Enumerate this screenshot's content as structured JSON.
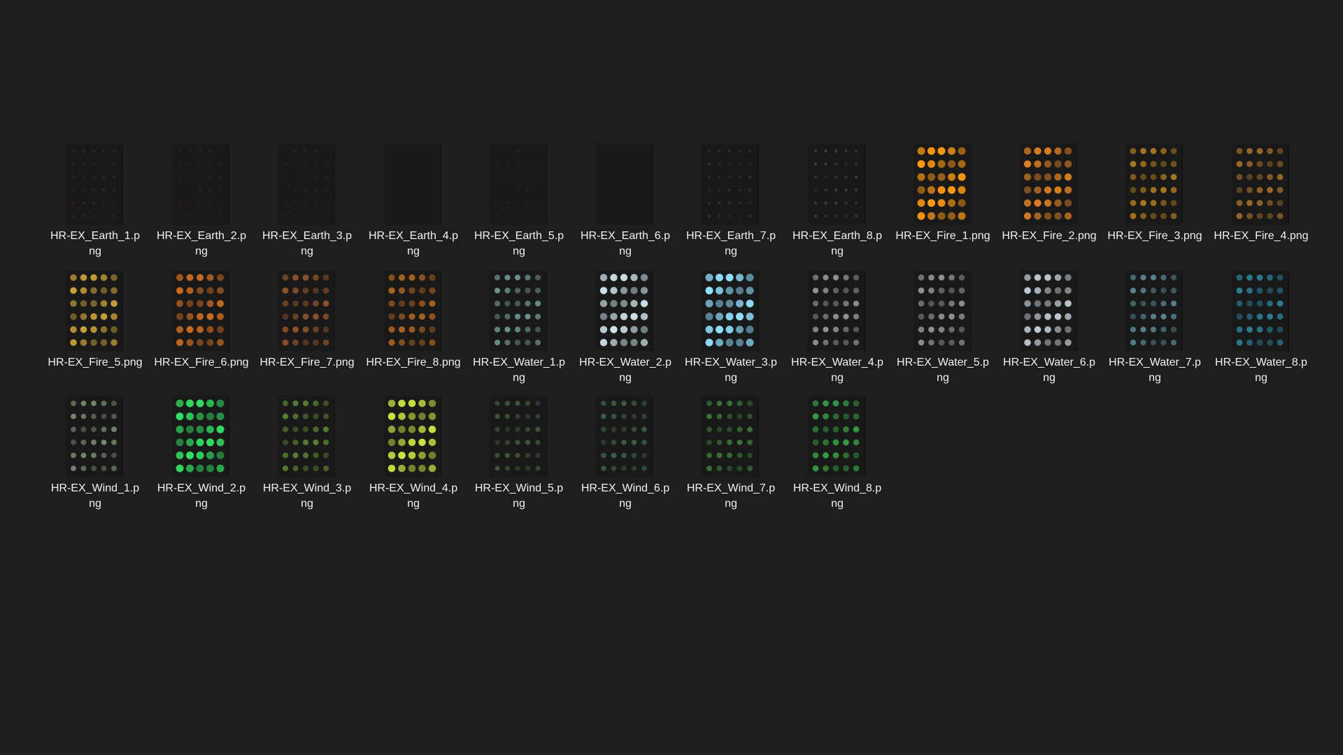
{
  "files": [
    {
      "name": "HR-EX_Earth_1.png",
      "label": "HR-EX_Earth_1.p\nng",
      "kind": "earth",
      "color": "#6b3a1c",
      "intensity": 0.35
    },
    {
      "name": "HR-EX_Earth_2.png",
      "label": "HR-EX_Earth_2.p\nng",
      "kind": "earth",
      "color": "#5a3018",
      "intensity": 0.3
    },
    {
      "name": "HR-EX_Earth_3.png",
      "label": "HR-EX_Earth_3.p\nng",
      "kind": "earth",
      "color": "#5a3018",
      "intensity": 0.3
    },
    {
      "name": "HR-EX_Earth_4.png",
      "label": "HR-EX_Earth_4.p\nng",
      "kind": "earth",
      "color": "#2a2a2a",
      "intensity": 0.0
    },
    {
      "name": "HR-EX_Earth_5.png",
      "label": "HR-EX_Earth_5.p\nng",
      "kind": "earth",
      "color": "#4a3a30",
      "intensity": 0.2
    },
    {
      "name": "HR-EX_Earth_6.png",
      "label": "HR-EX_Earth_6.p\nng",
      "kind": "earth",
      "color": "#2a2a2a",
      "intensity": 0.0
    },
    {
      "name": "HR-EX_Earth_7.png",
      "label": "HR-EX_Earth_7.p\nng",
      "kind": "earth",
      "color": "#6a4a3a",
      "intensity": 0.4
    },
    {
      "name": "HR-EX_Earth_8.png",
      "label": "HR-EX_Earth_8.p\nng",
      "kind": "earth",
      "color": "#7a6a50",
      "intensity": 0.45
    },
    {
      "name": "HR-EX_Fire_1.png",
      "label": "HR-EX_Fire_1.png",
      "kind": "fire",
      "color": "#ff9a10",
      "intensity": 1.0
    },
    {
      "name": "HR-EX_Fire_2.png",
      "label": "HR-EX_Fire_2.png",
      "kind": "fire",
      "color": "#f08a20",
      "intensity": 0.9
    },
    {
      "name": "HR-EX_Fire_3.png",
      "label": "HR-EX_Fire_3.png",
      "kind": "fire",
      "color": "#e8a020",
      "intensity": 0.7
    },
    {
      "name": "HR-EX_Fire_4.png",
      "label": "HR-EX_Fire_4.png",
      "kind": "fire",
      "color": "#d08a30",
      "intensity": 0.7
    },
    {
      "name": "HR-EX_Fire_5.png",
      "label": "HR-EX_Fire_5.png",
      "kind": "fire",
      "color": "#f0c040",
      "intensity": 0.8
    },
    {
      "name": "HR-EX_Fire_6.png",
      "label": "HR-EX_Fire_6.png",
      "kind": "fire",
      "color": "#e87820",
      "intensity": 0.85
    },
    {
      "name": "HR-EX_Fire_7.png",
      "label": "HR-EX_Fire_7.png",
      "kind": "fire",
      "color": "#c06a30",
      "intensity": 0.7
    },
    {
      "name": "HR-EX_Fire_8.png",
      "label": "HR-EX_Fire_8.png",
      "kind": "fire",
      "color": "#d87a20",
      "intensity": 0.75
    },
    {
      "name": "HR-EX_Water_1.png",
      "label": "HR-EX_Water_1.p\nng",
      "kind": "water",
      "color": "#a0e0d8",
      "intensity": 0.6
    },
    {
      "name": "HR-EX_Water_2.png",
      "label": "HR-EX_Water_2.p\nng",
      "kind": "water",
      "color": "#e0f8ff",
      "intensity": 0.9
    },
    {
      "name": "HR-EX_Water_3.png",
      "label": "HR-EX_Water_3.p\nng",
      "kind": "water",
      "color": "#90e0ff",
      "intensity": 1.0
    },
    {
      "name": "HR-EX_Water_4.png",
      "label": "HR-EX_Water_4.p\nng",
      "kind": "water",
      "color": "#e0e0e0",
      "intensity": 0.6
    },
    {
      "name": "HR-EX_Water_5.png",
      "label": "HR-EX_Water_5.p\nng",
      "kind": "water",
      "color": "#d0d0d0",
      "intensity": 0.65
    },
    {
      "name": "HR-EX_Water_6.png",
      "label": "HR-EX_Water_6.p\nng",
      "kind": "water",
      "color": "#e8f4ff",
      "intensity": 0.8
    },
    {
      "name": "HR-EX_Water_7.png",
      "label": "HR-EX_Water_7.p\nng",
      "kind": "water",
      "color": "#80c8e0",
      "intensity": 0.6
    },
    {
      "name": "HR-EX_Water_8.png",
      "label": "HR-EX_Water_8.p\nng",
      "kind": "water",
      "color": "#30a8c8",
      "intensity": 0.7
    },
    {
      "name": "HR-EX_Wind_1.png",
      "label": "HR-EX_Wind_1.p\nng",
      "kind": "wind",
      "color": "#c0e0b0",
      "intensity": 0.55
    },
    {
      "name": "HR-EX_Wind_2.png",
      "label": "HR-EX_Wind_2.p\nng",
      "kind": "wind",
      "color": "#30e060",
      "intensity": 1.0
    },
    {
      "name": "HR-EX_Wind_3.png",
      "label": "HR-EX_Wind_3.p\nng",
      "kind": "wind",
      "color": "#80c040",
      "intensity": 0.6
    },
    {
      "name": "HR-EX_Wind_4.png",
      "label": "HR-EX_Wind_4.p\nng",
      "kind": "wind",
      "color": "#d0f040",
      "intensity": 0.95
    },
    {
      "name": "HR-EX_Wind_5.png",
      "label": "HR-EX_Wind_5.p\nng",
      "kind": "wind",
      "color": "#70a060",
      "intensity": 0.45
    },
    {
      "name": "HR-EX_Wind_6.png",
      "label": "HR-EX_Wind_6.p\nng",
      "kind": "wind",
      "color": "#60a070",
      "intensity": 0.5
    },
    {
      "name": "HR-EX_Wind_7.png",
      "label": "HR-EX_Wind_7.p\nng",
      "kind": "wind",
      "color": "#50c050",
      "intensity": 0.55
    },
    {
      "name": "HR-EX_Wind_8.png",
      "label": "HR-EX_Wind_8.p\nng",
      "kind": "wind",
      "color": "#40d050",
      "intensity": 0.7
    }
  ],
  "colors": {
    "background": "#1e1e1e",
    "label_text": "#f2f2f2",
    "thumb_bg": "#191919"
  }
}
